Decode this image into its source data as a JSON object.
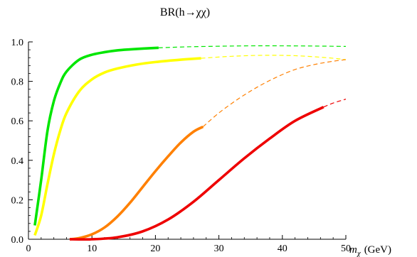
{
  "chart_data": {
    "type": "line",
    "title": "BR(h→χχ)",
    "xlabel_var": "m",
    "xlabel_sub": "χ",
    "xlabel_unit": "(GeV)",
    "ylabel": "",
    "xlim": [
      0,
      50
    ],
    "ylim": [
      0,
      1.0
    ],
    "x_ticks": [
      0,
      10,
      20,
      30,
      40,
      50
    ],
    "x_tick_labels": [
      "0",
      "10",
      "20",
      "30",
      "40",
      "50"
    ],
    "y_ticks": [
      0.0,
      0.2,
      0.4,
      0.6,
      0.8,
      1.0
    ],
    "y_tick_labels": [
      "0.0",
      "0.2",
      "0.4",
      "0.6",
      "0.8",
      "1.0"
    ],
    "grid": false,
    "series": [
      {
        "color": "#00e600",
        "solid_x": [
          1,
          2,
          3,
          4,
          5,
          6,
          8,
          10,
          12,
          14,
          16,
          18,
          20.5
        ],
        "solid_y": [
          0.07,
          0.3,
          0.55,
          0.7,
          0.79,
          0.85,
          0.91,
          0.935,
          0.948,
          0.957,
          0.962,
          0.966,
          0.97
        ],
        "dashed_x": [
          20.5,
          25,
          30,
          35,
          40,
          45,
          50
        ],
        "dashed_y": [
          0.97,
          0.975,
          0.978,
          0.98,
          0.98,
          0.979,
          0.977
        ]
      },
      {
        "color": "#ffff00",
        "solid_x": [
          1,
          2,
          3,
          4,
          5,
          6,
          8,
          10,
          12,
          14,
          17,
          20,
          24,
          27.2
        ],
        "solid_y": [
          0.02,
          0.12,
          0.28,
          0.43,
          0.55,
          0.64,
          0.75,
          0.81,
          0.845,
          0.865,
          0.885,
          0.898,
          0.91,
          0.917
        ],
        "dashed_x": [
          27.2,
          32,
          37,
          42,
          47,
          50
        ],
        "dashed_y": [
          0.917,
          0.927,
          0.932,
          0.93,
          0.92,
          0.91
        ]
      },
      {
        "color": "#ff8000",
        "solid_x": [
          6.5,
          8,
          10,
          12,
          14,
          16,
          18,
          20,
          22,
          24,
          26,
          27.5
        ],
        "solid_y": [
          0.0,
          0.006,
          0.025,
          0.06,
          0.115,
          0.185,
          0.265,
          0.345,
          0.42,
          0.49,
          0.545,
          0.57
        ],
        "dashed_x": [
          27.5,
          30,
          33,
          36,
          39,
          42,
          45,
          48,
          50
        ],
        "dashed_y": [
          0.57,
          0.64,
          0.71,
          0.77,
          0.82,
          0.86,
          0.885,
          0.902,
          0.91
        ]
      },
      {
        "color": "#ee0000",
        "solid_x": [
          6.5,
          10,
          14,
          18,
          22,
          26,
          30,
          34,
          38,
          42,
          46.5
        ],
        "solid_y": [
          0.0,
          0.0,
          0.01,
          0.04,
          0.1,
          0.19,
          0.3,
          0.41,
          0.51,
          0.6,
          0.67
        ],
        "dashed_x": [
          46.5,
          48,
          50
        ],
        "dashed_y": [
          0.67,
          0.69,
          0.71
        ]
      }
    ]
  }
}
